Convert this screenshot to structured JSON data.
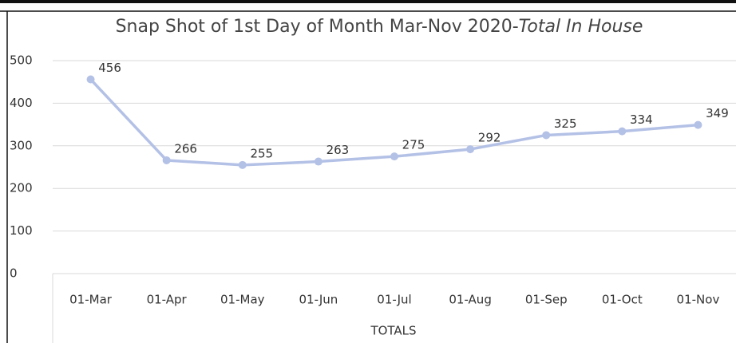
{
  "chart_data": {
    "type": "line",
    "title": "Snap Shot of 1st Day of Month Mar-Nov 2020-",
    "title_emphasis": "Total In House",
    "x_label": "TOTALS",
    "categories": [
      "01-Mar",
      "01-Apr",
      "01-May",
      "01-Jun",
      "01-Jul",
      "01-Aug",
      "01-Sep",
      "01-Oct",
      "01-Nov"
    ],
    "values": [
      456,
      266,
      255,
      263,
      275,
      292,
      325,
      334,
      349
    ],
    "color": "#b4c1e6",
    "ylim": [
      0,
      500
    ],
    "yticks": [
      0,
      100,
      200,
      300,
      400,
      500
    ],
    "grid": true
  }
}
